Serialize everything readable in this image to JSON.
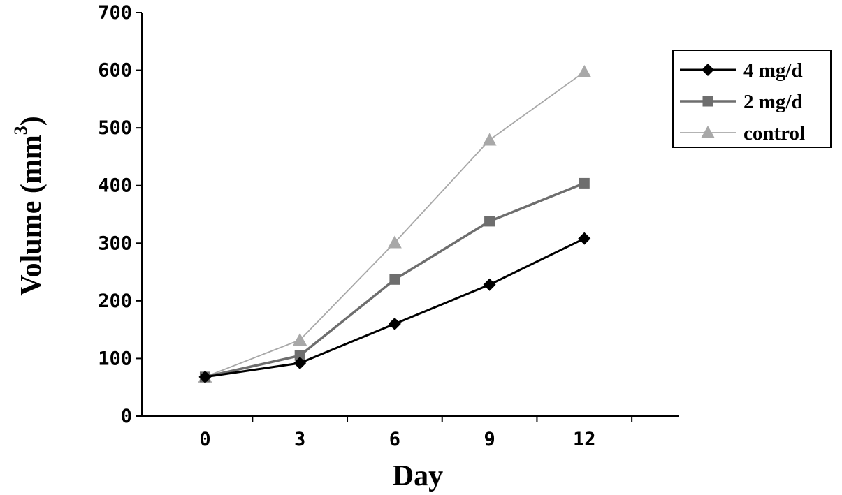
{
  "chart_data": {
    "type": "line",
    "x": [
      0,
      3,
      6,
      9,
      12
    ],
    "x_ticks": [
      "0",
      "3",
      "6",
      "9",
      "12"
    ],
    "y_ticks": [
      "0",
      "100",
      "200",
      "300",
      "400",
      "500",
      "600",
      "700"
    ],
    "xlabel": "Day",
    "ylabel": "Volume (mm",
    "ylabel_superscript": "3",
    "ylabel_suffix": ")",
    "xlim": [
      -2,
      15
    ],
    "ylim": [
      0,
      700
    ],
    "grid": false,
    "legend_position": "top-right",
    "series": [
      {
        "name": "4 mg/d",
        "values": [
          68,
          92,
          160,
          228,
          308
        ],
        "color": "#000000",
        "marker": "diamond"
      },
      {
        "name": "2 mg/d",
        "values": [
          68,
          105,
          237,
          338,
          404
        ],
        "color": "#6e6e6e",
        "marker": "square"
      },
      {
        "name": "control",
        "values": [
          68,
          132,
          301,
          479,
          597
        ],
        "color": "#a8a8a8",
        "marker": "triangle"
      }
    ]
  }
}
